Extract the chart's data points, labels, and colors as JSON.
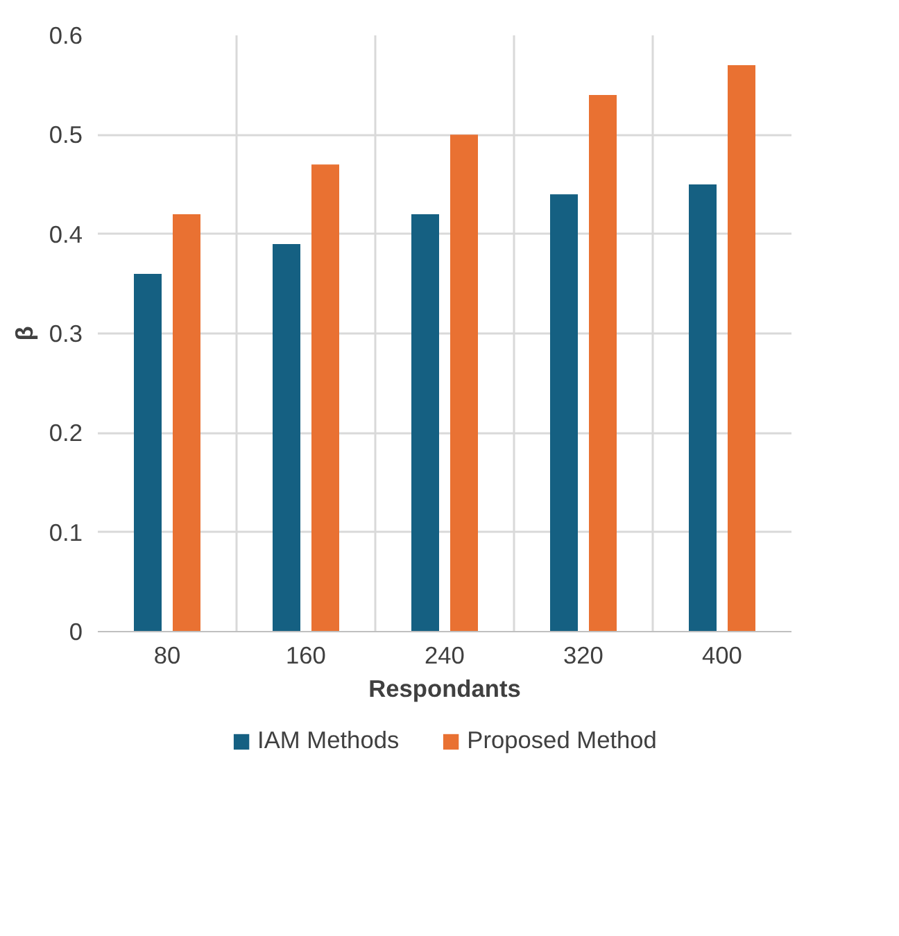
{
  "chart_data": {
    "type": "bar",
    "xlabel": "Respondants",
    "ylabel": "β",
    "categories": [
      "80",
      "160",
      "240",
      "320",
      "400"
    ],
    "series": [
      {
        "name": "IAM Methods",
        "color": "#156082",
        "values": [
          0.36,
          0.39,
          0.42,
          0.44,
          0.45
        ]
      },
      {
        "name": "Proposed Method",
        "color": "#e97132",
        "values": [
          0.42,
          0.47,
          0.5,
          0.54,
          0.57
        ]
      }
    ],
    "ylim": [
      0,
      0.6
    ],
    "yticks": [
      0,
      0.1,
      0.2,
      0.3,
      0.4,
      0.5,
      0.6
    ],
    "grid": true,
    "legend": "bottom"
  }
}
